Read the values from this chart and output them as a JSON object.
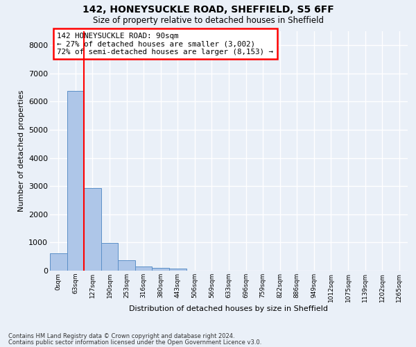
{
  "title1": "142, HONEYSUCKLE ROAD, SHEFFIELD, S5 6FF",
  "title2": "Size of property relative to detached houses in Sheffield",
  "xlabel": "Distribution of detached houses by size in Sheffield",
  "ylabel": "Number of detached properties",
  "footnote1": "Contains HM Land Registry data © Crown copyright and database right 2024.",
  "footnote2": "Contains public sector information licensed under the Open Government Licence v3.0.",
  "bar_labels": [
    "0sqm",
    "63sqm",
    "127sqm",
    "190sqm",
    "253sqm",
    "316sqm",
    "380sqm",
    "443sqm",
    "506sqm",
    "569sqm",
    "633sqm",
    "696sqm",
    "759sqm",
    "822sqm",
    "886sqm",
    "949sqm",
    "1012sqm",
    "1075sqm",
    "1139sqm",
    "1202sqm",
    "1265sqm"
  ],
  "bar_values": [
    620,
    6380,
    2920,
    990,
    370,
    155,
    90,
    80,
    0,
    0,
    0,
    0,
    0,
    0,
    0,
    0,
    0,
    0,
    0,
    0,
    0
  ],
  "bar_color": "#aec6e8",
  "bar_edge_color": "#5b8fc7",
  "property_line_x": 2,
  "property_line_label": "142 HONEYSUCKLE ROAD: 90sqm",
  "annotation_line1": "← 27% of detached houses are smaller (3,002)",
  "annotation_line2": "72% of semi-detached houses are larger (8,153) →",
  "annotation_box_color": "white",
  "annotation_box_edge_color": "red",
  "ylim": [
    0,
    8500
  ],
  "yticks": [
    0,
    1000,
    2000,
    3000,
    4000,
    5000,
    6000,
    7000,
    8000
  ],
  "vline_color": "red",
  "background_color": "#eaf0f8",
  "grid_color": "white"
}
